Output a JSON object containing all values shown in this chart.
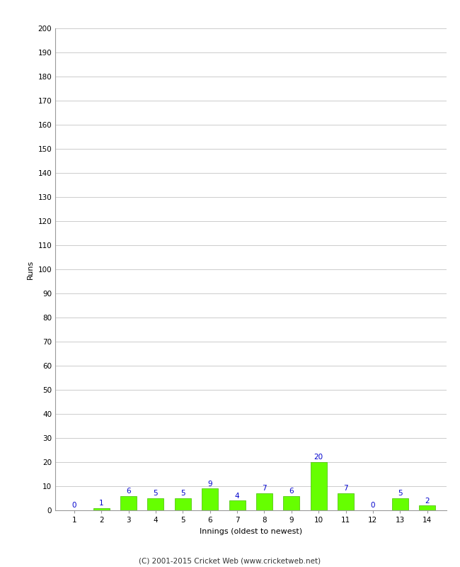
{
  "xlabel": "Innings (oldest to newest)",
  "ylabel": "Runs",
  "categories": [
    1,
    2,
    3,
    4,
    5,
    6,
    7,
    8,
    9,
    10,
    11,
    12,
    13,
    14
  ],
  "values": [
    0,
    1,
    6,
    5,
    5,
    9,
    4,
    7,
    6,
    20,
    7,
    0,
    5,
    2
  ],
  "bar_color": "#66ff00",
  "bar_edge_color": "#44bb00",
  "label_color": "#0000cc",
  "label_fontsize": 7.5,
  "ylabel_fontsize": 8,
  "xlabel_fontsize": 8,
  "tick_fontsize": 7.5,
  "ylim": [
    0,
    200
  ],
  "yticks": [
    0,
    10,
    20,
    30,
    40,
    50,
    60,
    70,
    80,
    90,
    100,
    110,
    120,
    130,
    140,
    150,
    160,
    170,
    180,
    190,
    200
  ],
  "background_color": "#ffffff",
  "grid_color": "#cccccc",
  "footer": "(C) 2001-2015 Cricket Web (www.cricketweb.net)"
}
